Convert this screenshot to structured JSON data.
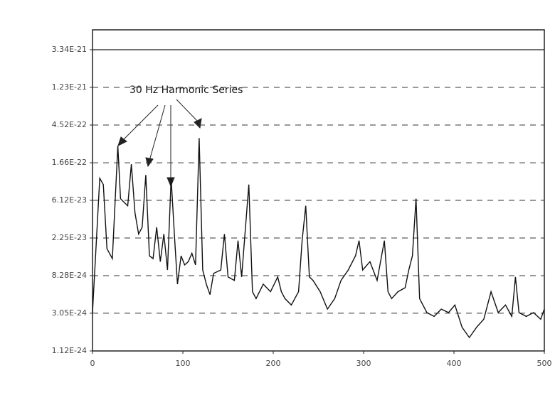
{
  "chart_data": {
    "type": "line",
    "annotation": "30 Hz Harmonic Series",
    "x": [
      0,
      8,
      12,
      16,
      22,
      28,
      31,
      35,
      39,
      43,
      47,
      51,
      55,
      59,
      63,
      67,
      71,
      75,
      79,
      83,
      87,
      91,
      94,
      98,
      102,
      106,
      110,
      114,
      118,
      122,
      126,
      130,
      134,
      142,
      146,
      150,
      157,
      161,
      165,
      173,
      177,
      181,
      189,
      197,
      205,
      209,
      213,
      220,
      228,
      232,
      236,
      240,
      244,
      252,
      260,
      268,
      275,
      283,
      291,
      295,
      299,
      307,
      315,
      323,
      327,
      331,
      338,
      346,
      350,
      354,
      358,
      362,
      370,
      378,
      386,
      394,
      401,
      409,
      417,
      425,
      433,
      441,
      449,
      457,
      464,
      468,
      472,
      480,
      488,
      496,
      500
    ],
    "series": [
      {
        "color": "#111111",
        "values": [
          3.1e-24,
          1.1e-22,
          9.3e-23,
          1.7e-23,
          1.3e-23,
          2.6e-22,
          6.4e-23,
          5.8e-23,
          5.3e-23,
          1.6e-22,
          4.4e-23,
          2.5e-23,
          3e-23,
          1.2e-22,
          1.4e-23,
          1.3e-23,
          3e-23,
          1.2e-23,
          2.5e-23,
          9.6e-24,
          1.1e-22,
          2.1e-23,
          6.6e-24,
          1.4e-23,
          1.1e-23,
          1.2e-23,
          1.5e-23,
          1.1e-23,
          3.2e-22,
          9.6e-24,
          6.6e-24,
          5e-24,
          8.8e-24,
          9.6e-24,
          2.5e-23,
          8e-24,
          7.3e-24,
          2.1e-23,
          8e-24,
          9.3e-23,
          5.4e-24,
          4.5e-24,
          6.6e-24,
          5.4e-24,
          8e-24,
          5.4e-24,
          4.5e-24,
          3.8e-24,
          5.4e-24,
          2.1e-23,
          5.3e-23,
          8e-24,
          7.3e-24,
          5.4e-24,
          3.4e-24,
          4.5e-24,
          7.3e-24,
          9.6e-24,
          1.4e-23,
          2.1e-23,
          9.6e-24,
          1.2e-23,
          7.3e-24,
          2.1e-23,
          5.4e-24,
          4.5e-24,
          5.4e-24,
          6e-24,
          9.6e-24,
          1.4e-23,
          6.4e-23,
          4.5e-24,
          3.1e-24,
          2.8e-24,
          3.4e-24,
          3.1e-24,
          3.8e-24,
          2.1e-24,
          1.6e-24,
          2.1e-24,
          2.6e-24,
          5.4e-24,
          3.1e-24,
          3.8e-24,
          2.8e-24,
          8e-24,
          3.1e-24,
          2.8e-24,
          3.1e-24,
          2.6e-24,
          3.4e-24
        ]
      }
    ],
    "xlim": [
      0,
      500
    ],
    "xticks": [
      0,
      100,
      200,
      300,
      400,
      500
    ],
    "ylim": [
      1.12e-24,
      3.34e-21
    ],
    "log_y": true,
    "yticks": [
      {
        "value": 1.12e-24,
        "label": "1.12E-24"
      },
      {
        "value": 3.05e-24,
        "label": "3.05E-24"
      },
      {
        "value": 8.28e-24,
        "label": "8.28E-24"
      },
      {
        "value": 2.25e-23,
        "label": "2.25E-23"
      },
      {
        "value": 6.12e-23,
        "label": "6.12E-23"
      },
      {
        "value": 1.66e-22,
        "label": "1.66E-22"
      },
      {
        "value": 4.52e-22,
        "label": "4.52E-22"
      },
      {
        "value": 1.23e-21,
        "label": "1.23E-21"
      },
      {
        "value": 3.34e-21,
        "label": "3.34E-21"
      }
    ],
    "grid": true
  }
}
